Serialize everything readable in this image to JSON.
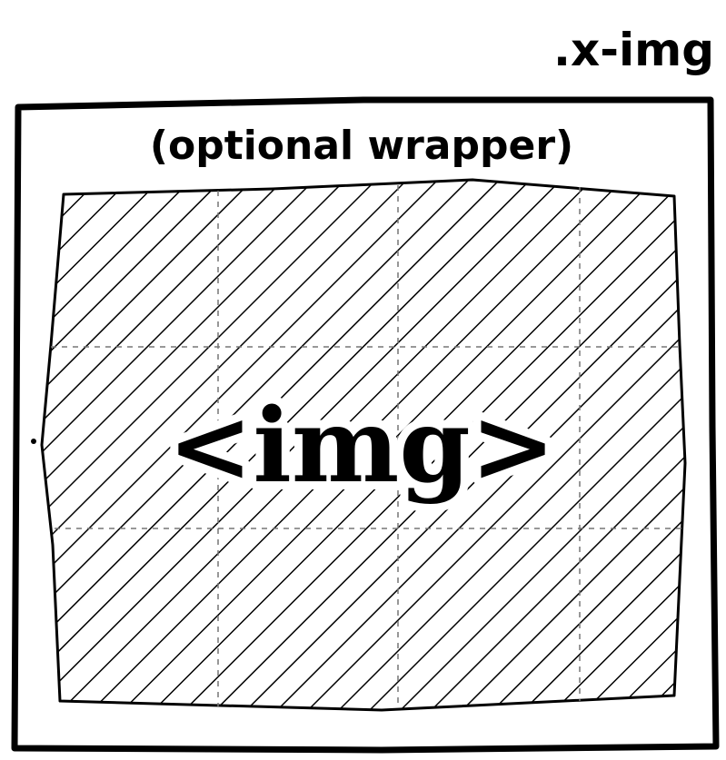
{
  "diagram": {
    "class_label": ".x-img",
    "wrapper_label": "(optional wrapper)",
    "img_label": "<img>",
    "colors": {
      "ink": "#000000",
      "paper": "#ffffff"
    },
    "fill_pattern": "diagonal-hatch"
  }
}
